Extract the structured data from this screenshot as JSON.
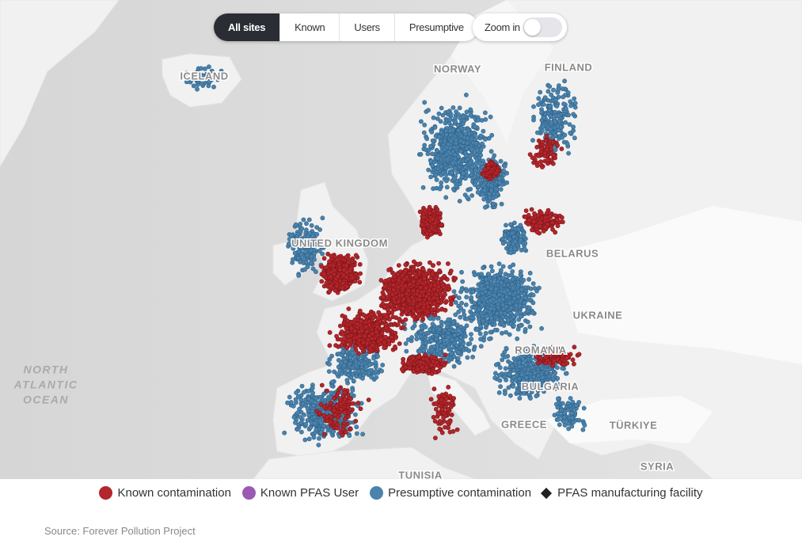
{
  "tabs": [
    "All sites",
    "Known",
    "Users",
    "Presumptive"
  ],
  "zoom_label": "Zoom in",
  "map_labels": [
    "ICELAND",
    "NORWAY",
    "FINLAND",
    "UNITED KINGDOM",
    "BELARUS",
    "UKRAINE",
    "ROMANIA",
    "BULGARIA",
    "GREECE",
    "TÜRKIYE",
    "SYRIA",
    "TUNISIA"
  ],
  "ocean_label": [
    "NORTH",
    "ATLANTIC",
    "OCEAN"
  ],
  "legend": [
    "Known contamination",
    "Known PFAS User",
    "Presumptive contamination",
    "PFAS manufacturing facility"
  ],
  "source": "Source: Forever Pollution Project"
}
